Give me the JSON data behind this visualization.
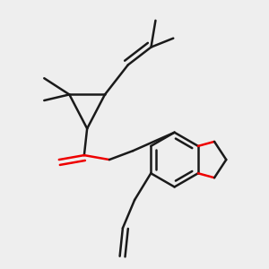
{
  "bg_color": "#eeeeee",
  "bond_color": "#1a1a1a",
  "oxygen_color": "#ee0000",
  "line_width": 1.8,
  "figsize": [
    3.0,
    3.0
  ],
  "dpi": 100
}
